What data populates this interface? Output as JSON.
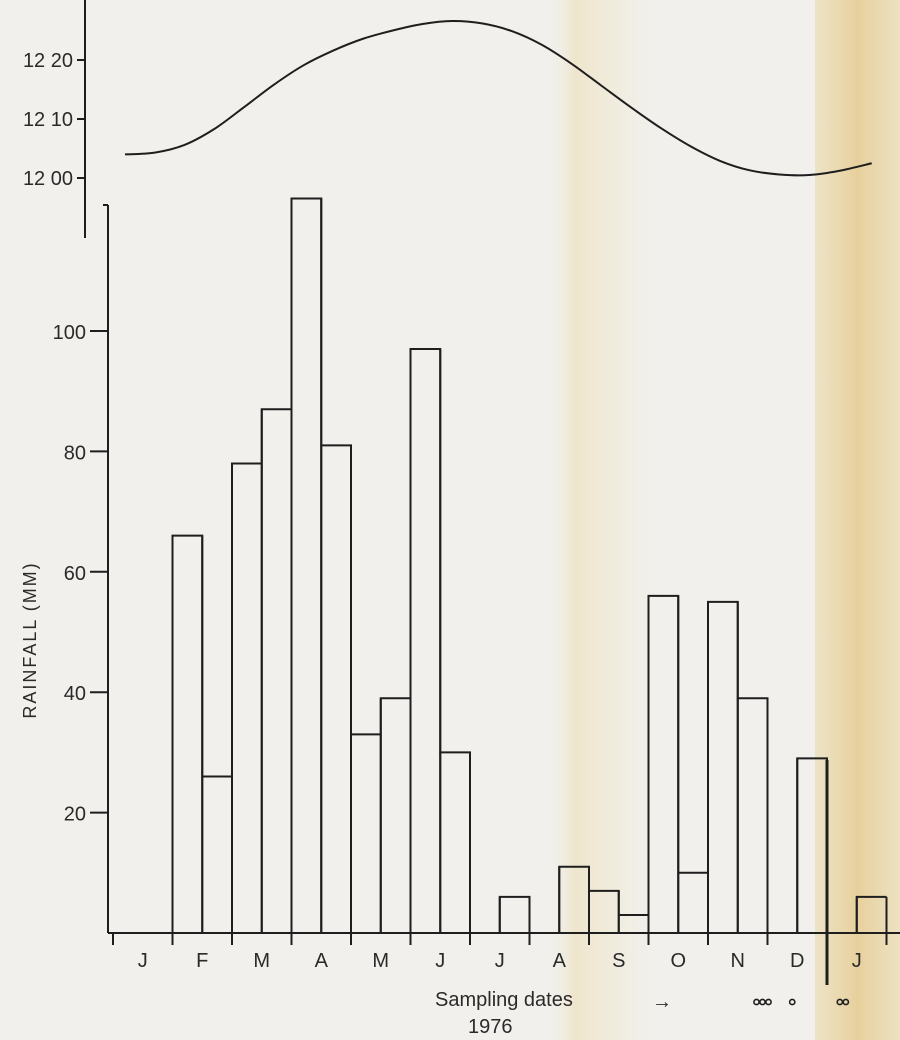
{
  "chart_data": [
    {
      "type": "line",
      "title": "",
      "ylabel": "",
      "yticks": [
        "12 00",
        "12 10",
        "12 20"
      ],
      "ylim_minutes": [
        0,
        27
      ],
      "x_range_months": [
        0,
        12.55
      ],
      "points": [
        {
          "month": 0.0,
          "value": 4
        },
        {
          "month": 0.5,
          "value": 4.3
        },
        {
          "month": 1.0,
          "value": 5.6
        },
        {
          "month": 1.5,
          "value": 8.3
        },
        {
          "month": 2.0,
          "value": 12.0
        },
        {
          "month": 2.5,
          "value": 15.8
        },
        {
          "month": 3.0,
          "value": 19.1
        },
        {
          "month": 3.5,
          "value": 21.6
        },
        {
          "month": 4.0,
          "value": 23.6
        },
        {
          "month": 4.5,
          "value": 25.0
        },
        {
          "month": 5.0,
          "value": 26.1
        },
        {
          "month": 5.5,
          "value": 26.6
        },
        {
          "month": 6.0,
          "value": 26.2
        },
        {
          "month": 6.5,
          "value": 24.9
        },
        {
          "month": 7.0,
          "value": 22.6
        },
        {
          "month": 7.5,
          "value": 19.4
        },
        {
          "month": 8.0,
          "value": 15.7
        },
        {
          "month": 8.5,
          "value": 12.0
        },
        {
          "month": 9.0,
          "value": 8.5
        },
        {
          "month": 9.5,
          "value": 5.4
        },
        {
          "month": 10.0,
          "value": 2.9
        },
        {
          "month": 10.5,
          "value": 1.3
        },
        {
          "month": 11.0,
          "value": 0.6
        },
        {
          "month": 11.5,
          "value": 0.5
        },
        {
          "month": 12.0,
          "value": 1.2
        },
        {
          "month": 12.55,
          "value": 2.5
        }
      ]
    },
    {
      "type": "bar",
      "title": "",
      "ylabel": "RAINFALL   (MM)",
      "xlabel": "",
      "yticks": [
        20,
        40,
        60,
        80,
        100
      ],
      "ylim": [
        0,
        120
      ],
      "categories": [
        "J",
        "F",
        "M",
        "A",
        "M",
        "J",
        "J",
        "A",
        "S",
        "O",
        "N",
        "D",
        "J"
      ],
      "step_values": [
        0,
        0,
        66,
        26,
        78,
        87,
        122,
        81,
        33,
        39,
        97,
        30,
        0,
        6,
        0,
        11,
        7,
        3,
        56,
        10,
        55,
        39,
        0,
        29,
        0,
        6
      ],
      "step_width_months": 0.5
    }
  ],
  "annotations": {
    "sampling_label": "Sampling dates",
    "arrow_glyph": "→",
    "year": "1976"
  },
  "sampling_markers": [
    {
      "month": 11.0,
      "count": 3
    },
    {
      "month": 11.5,
      "count": 1
    },
    {
      "month": 12.35,
      "count": 2
    }
  ],
  "colors": {
    "ink": "#1e1e1e",
    "paper": "#f1f0ec",
    "stain": "#e9d7a8"
  }
}
